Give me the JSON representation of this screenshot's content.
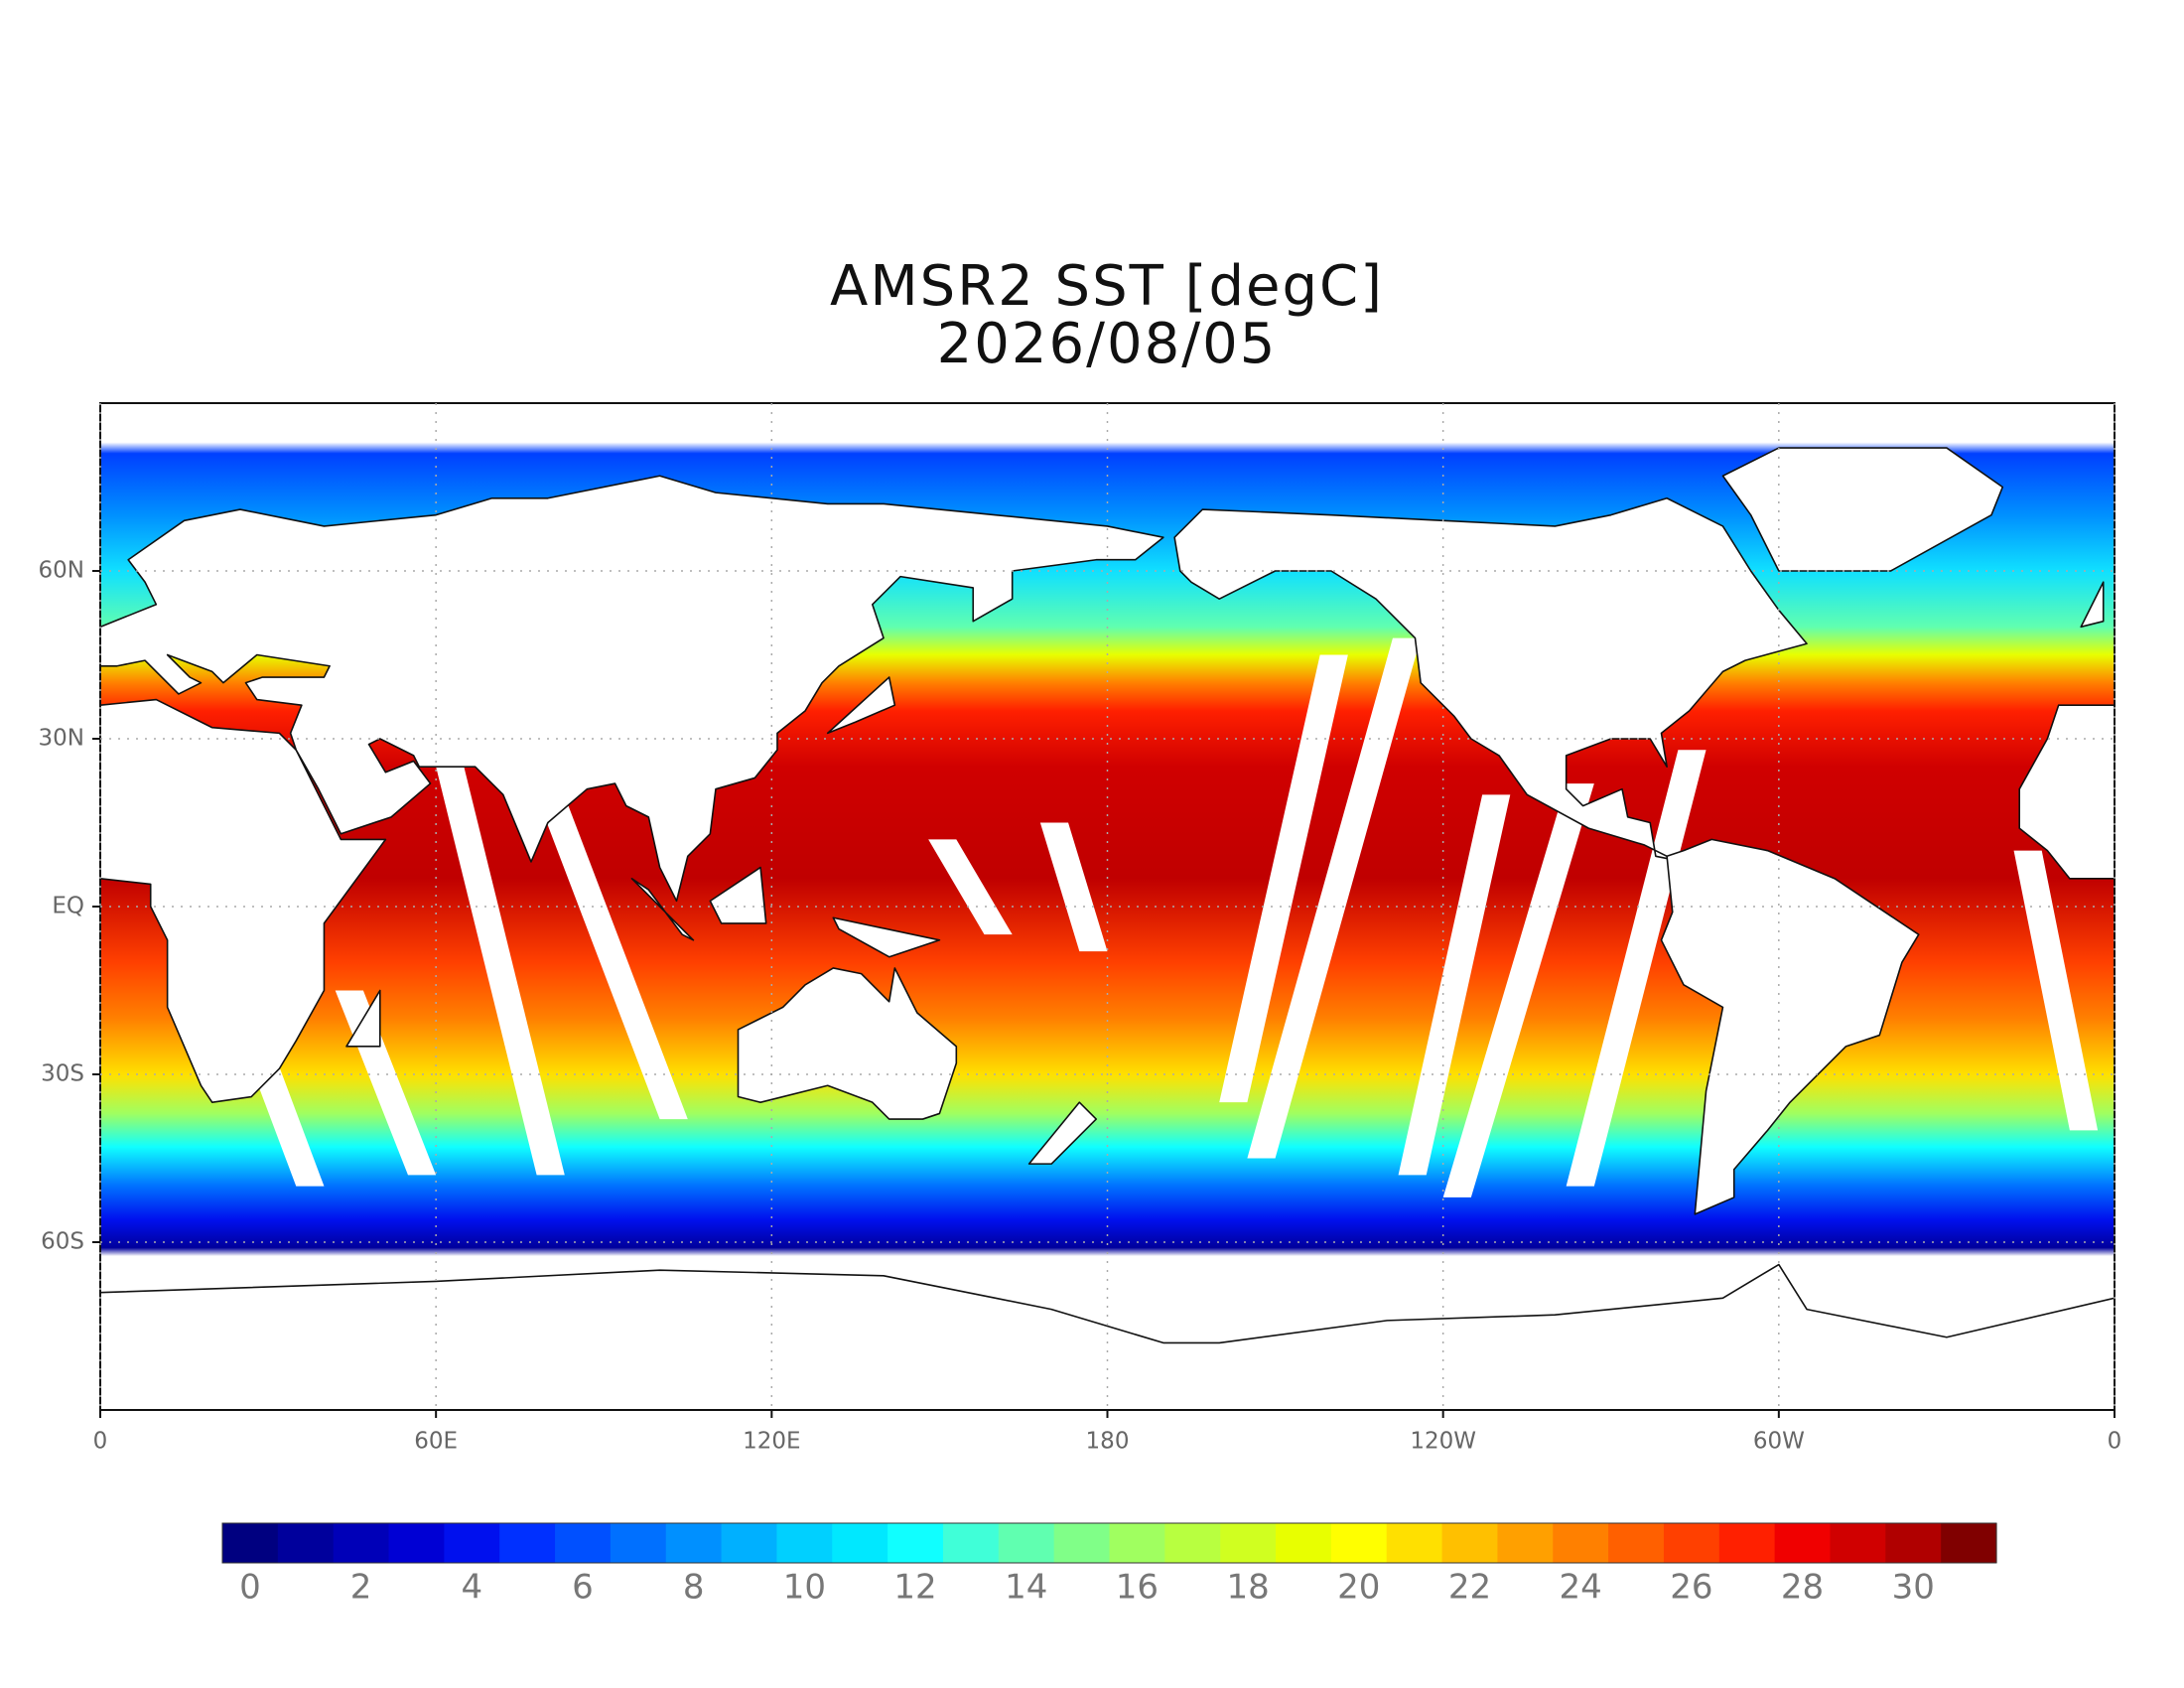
{
  "title": "AMSR2 SST [degC]",
  "date": "2026/08/05",
  "map": {
    "xlim": [
      0,
      360
    ],
    "ylim": [
      -90,
      90
    ],
    "xticks": [
      0,
      {
        "value": 60,
        "label": "60E"
      },
      {
        "value": 120,
        "label": "120E"
      },
      180,
      {
        "value": 240,
        "label": "120W"
      },
      {
        "value": 300,
        "label": "60W"
      },
      {
        "value": 360,
        "label": "0"
      }
    ],
    "yticks": [
      {
        "value": -60,
        "label": "60S"
      },
      {
        "value": -30,
        "label": "30S"
      },
      {
        "value": 0,
        "label": "EQ"
      },
      {
        "value": 30,
        "label": "30N"
      },
      {
        "value": 60,
        "label": "60N"
      }
    ],
    "grid": true
  },
  "colorbar": {
    "ticks": [
      0,
      2,
      4,
      6,
      8,
      10,
      12,
      14,
      16,
      18,
      20,
      22,
      24,
      26,
      28,
      30
    ],
    "colors": [
      "#000080",
      "#00009c",
      "#0000b8",
      "#0000d4",
      "#0010ee",
      "#0030ff",
      "#0050ff",
      "#0070ff",
      "#0090ff",
      "#00b0ff",
      "#00d0ff",
      "#00e8ff",
      "#10ffff",
      "#40ffd8",
      "#60ffb0",
      "#80ff88",
      "#a0ff60",
      "#b8ff40",
      "#d0ff20",
      "#e8ff00",
      "#ffff00",
      "#ffe000",
      "#ffc000",
      "#ffa000",
      "#ff8000",
      "#ff6000",
      "#ff4000",
      "#ff2000",
      "#f00000",
      "#d00000",
      "#b00000",
      "#800000"
    ]
  }
}
